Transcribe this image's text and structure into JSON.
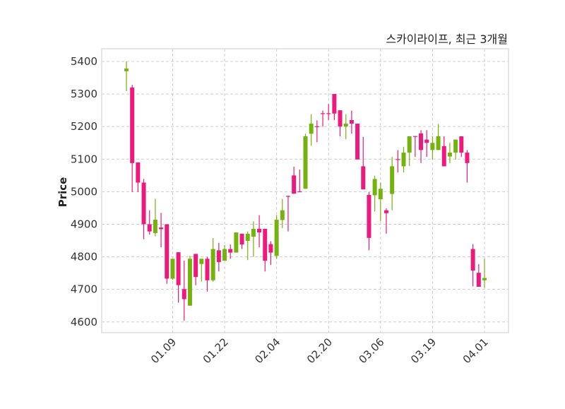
{
  "chart_data": {
    "type": "candlestick",
    "title": "스카이라이프, 최근 3개월",
    "xlabel": "",
    "ylabel": "Price",
    "ylim": [
      4567,
      5439
    ],
    "yticks": [
      4600,
      4700,
      4800,
      4900,
      5000,
      5100,
      5200,
      5300,
      5400
    ],
    "xtick_indices": [
      8,
      17,
      26,
      35,
      44,
      53,
      62
    ],
    "xtick_labels": [
      "01.09",
      "01.22",
      "02.04",
      "02.20",
      "03.06",
      "03.19",
      "04.01"
    ],
    "grid": true,
    "colors": {
      "up": "#76b20e",
      "down": "#ec1a7d",
      "grid": "#cccccc",
      "frame": "#dddddd"
    },
    "ohlc_fields": [
      "open",
      "high",
      "low",
      "close"
    ],
    "ohlc": [
      [
        5370,
        5400,
        5309,
        5378
      ],
      [
        5320,
        5328,
        4999,
        5088
      ],
      [
        5090,
        5090,
        4999,
        5028
      ],
      [
        5028,
        5039,
        4854,
        4900
      ],
      [
        4900,
        4943,
        4868,
        4878
      ],
      [
        4873,
        4978,
        4863,
        4914
      ],
      [
        4890,
        4935,
        4829,
        4885
      ],
      [
        4900,
        4900,
        4717,
        4733
      ],
      [
        4733,
        4794,
        4729,
        4794
      ],
      [
        4814,
        4814,
        4659,
        4713
      ],
      [
        4701,
        4788,
        4604,
        4670
      ],
      [
        4650,
        4803,
        4650,
        4794
      ],
      [
        4809,
        4809,
        4713,
        4738
      ],
      [
        4778,
        4794,
        4724,
        4794
      ],
      [
        4794,
        4800,
        4693,
        4728
      ],
      [
        4728,
        4858,
        4724,
        4824
      ],
      [
        4820,
        4843,
        4755,
        4784
      ],
      [
        4788,
        4836,
        4788,
        4824
      ],
      [
        4824,
        4838,
        4794,
        4813
      ],
      [
        4813,
        4875,
        4813,
        4875
      ],
      [
        4871,
        4871,
        4824,
        4838
      ],
      [
        4849,
        4878,
        4790,
        4871
      ],
      [
        4862,
        4909,
        4800,
        4886
      ],
      [
        4886,
        4928,
        4829,
        4875
      ],
      [
        4886,
        4886,
        4755,
        4788
      ],
      [
        4839,
        4848,
        4775,
        4813
      ],
      [
        4803,
        4928,
        4794,
        4914
      ],
      [
        4913,
        4978,
        4888,
        4943
      ],
      [
        4987,
        4988,
        4878,
        4985
      ],
      [
        5050,
        5077,
        4994,
        4994
      ],
      [
        5001,
        5068,
        5000,
        5000
      ],
      [
        5009,
        5178,
        5009,
        5170
      ],
      [
        5178,
        5238,
        5141,
        5209
      ],
      [
        5201,
        5219,
        5152,
        5200
      ],
      [
        5241,
        5249,
        5200,
        5240
      ],
      [
        5241,
        5269,
        5220,
        5240
      ],
      [
        5300,
        5300,
        5220,
        5240
      ],
      [
        5250,
        5250,
        5170,
        5200
      ],
      [
        5200,
        5238,
        5161,
        5209
      ],
      [
        5220,
        5249,
        5178,
        5209
      ],
      [
        5209,
        5209,
        5099,
        5099
      ],
      [
        5078,
        5168,
        5007,
        5007
      ],
      [
        4990,
        4999,
        4820,
        4858
      ],
      [
        4989,
        5049,
        4939,
        5039
      ],
      [
        4977,
        5028,
        4909,
        5009
      ],
      [
        4943,
        4949,
        4871,
        4934
      ],
      [
        4993,
        5107,
        4943,
        5078
      ],
      [
        5100,
        5128,
        5059,
        5099
      ],
      [
        5078,
        5138,
        5059,
        5120
      ],
      [
        5120,
        5170,
        5079,
        5170
      ],
      [
        5171,
        5171,
        5107,
        5170
      ],
      [
        5179,
        5189,
        5088,
        5128
      ],
      [
        5160,
        5189,
        5107,
        5150
      ],
      [
        5128,
        5170,
        5099,
        5150
      ],
      [
        5128,
        5208,
        5128,
        5170
      ],
      [
        5140,
        5170,
        5078,
        5078
      ],
      [
        5108,
        5150,
        5088,
        5120
      ],
      [
        5120,
        5160,
        5099,
        5160
      ],
      [
        5170,
        5170,
        5107,
        5120
      ],
      [
        5120,
        5128,
        5028,
        5088
      ],
      [
        4824,
        4839,
        4709,
        4758
      ],
      [
        4751,
        4778,
        4708,
        4708
      ],
      [
        4728,
        4794,
        4705,
        4735
      ]
    ]
  }
}
